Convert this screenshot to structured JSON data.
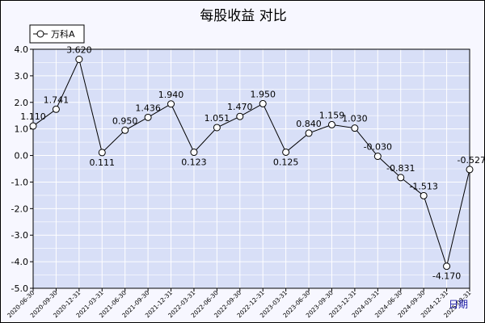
{
  "chart_data": {
    "type": "line",
    "title": "每股收益  对比",
    "xlabel": "日期",
    "ylabel": "",
    "ylim": [
      -5.0,
      4.0
    ],
    "yticks": [
      "4.0",
      "3.0",
      "2.0",
      "1.0",
      "0.0",
      "-1.0",
      "-2.0",
      "-3.0",
      "-4.0",
      "-5.0"
    ],
    "grid": true,
    "legend_position": "top-left",
    "categories": [
      "2020-06-30",
      "2020-09-30",
      "2020-12-31",
      "2021-03-31",
      "2021-06-30",
      "2021-09-30",
      "2021-12-31",
      "2022-03-31",
      "2022-06-30",
      "2022-09-30",
      "2022-12-31",
      "2023-03-31",
      "2023-06-30",
      "2023-09-30",
      "2023-12-31",
      "2024-03-31",
      "2024-06-30",
      "2024-09-30",
      "2024-12-31",
      "2025-03-31"
    ],
    "series": [
      {
        "name": "万科A",
        "values": [
          1.11,
          1.741,
          3.62,
          0.111,
          0.95,
          1.436,
          1.94,
          0.123,
          1.051,
          1.47,
          1.95,
          0.125,
          0.84,
          1.159,
          1.03,
          -0.03,
          -0.831,
          -1.513,
          -4.17,
          -0.527
        ],
        "labels": [
          "1.110",
          "1.741",
          "3.620",
          "0.111",
          "0.950",
          "1.436",
          "1.940",
          "0.123",
          "1.051",
          "1.470",
          "1.950",
          "0.125",
          "0.840",
          "1.159",
          "1.030",
          "-0.030",
          "-0.831",
          "-1.513",
          "-4.170",
          "-0.527"
        ]
      }
    ],
    "colors": {
      "line": "#000000",
      "marker_fill": "#ffffff",
      "plot_background": "#d8dff7",
      "grid": "#ffffff",
      "page_background": "#f7f7ff"
    }
  }
}
